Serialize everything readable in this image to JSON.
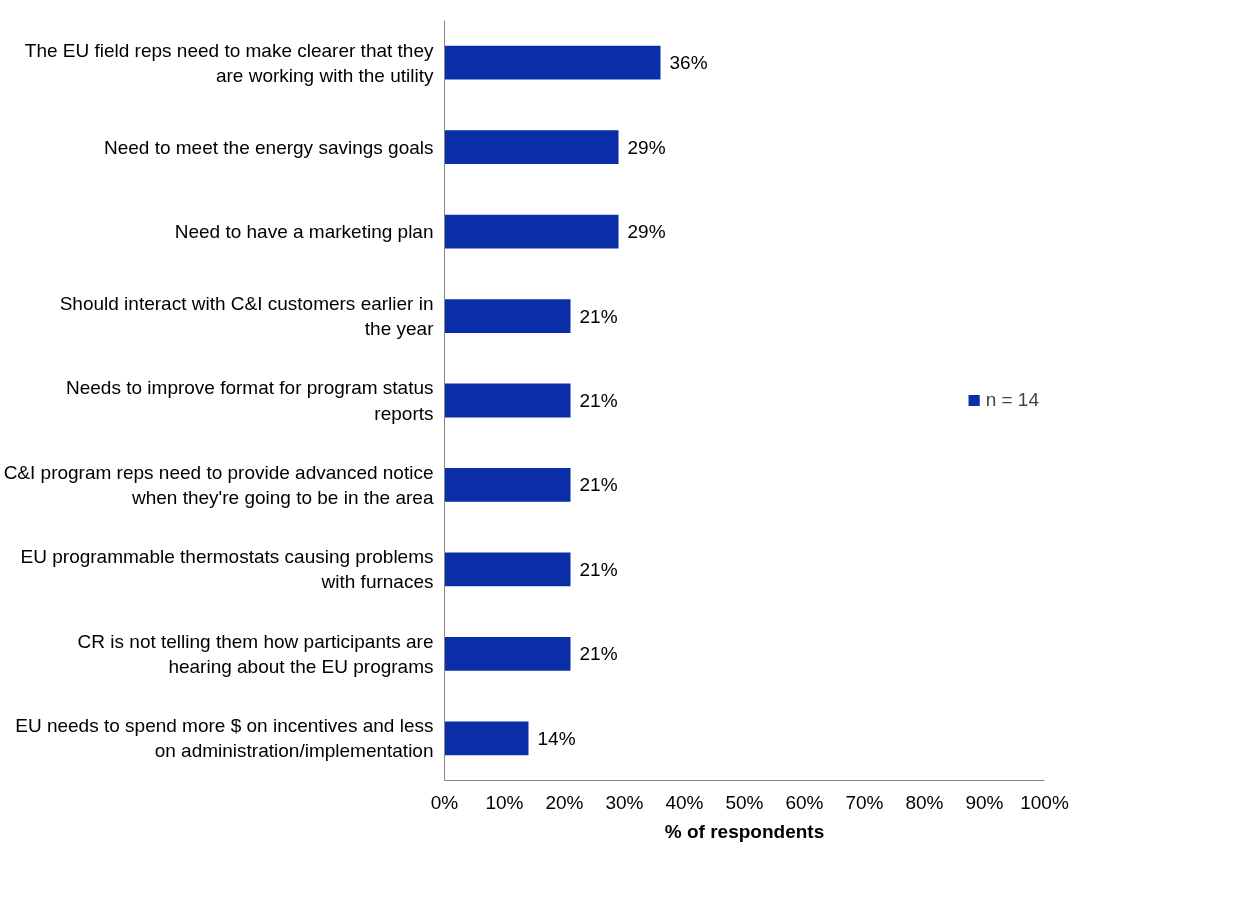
{
  "chart_data": {
    "type": "bar",
    "orientation": "horizontal",
    "xlabel": "% of respondents",
    "categories": [
      "The EU field reps need to make clearer that they are working with the utility",
      "Need to meet the energy savings goals",
      "Need to have a marketing plan",
      "Should interact with C&I customers earlier in the year",
      "Needs to improve format for program status reports",
      "C&I program reps need to provide advanced notice when they're going to be in the area",
      "EU programmable thermostats causing problems with furnaces",
      "CR is not telling them how participants are hearing about the EU programs",
      "EU needs to spend more $ on incentives and less on administration/implementation"
    ],
    "series": [
      {
        "name": "n = 14",
        "color": "#0a2da8",
        "values": [
          36,
          29,
          29,
          21,
          21,
          21,
          21,
          21,
          14
        ],
        "value_labels": [
          "36%",
          "29%",
          "29%",
          "21%",
          "21%",
          "21%",
          "21%",
          "21%",
          "14%"
        ]
      }
    ],
    "xlim": [
      0,
      100
    ],
    "xticks": [
      {
        "value": 0,
        "label": "0%"
      },
      {
        "value": 10,
        "label": "10%"
      },
      {
        "value": 20,
        "label": "20%"
      },
      {
        "value": 30,
        "label": "30%"
      },
      {
        "value": 40,
        "label": "40%"
      },
      {
        "value": 50,
        "label": "50%"
      },
      {
        "value": 60,
        "label": "60%"
      },
      {
        "value": 70,
        "label": "70%"
      },
      {
        "value": 80,
        "label": "80%"
      },
      {
        "value": 90,
        "label": "90%"
      },
      {
        "value": 100,
        "label": "100%"
      }
    ],
    "grid": false,
    "legend": "right"
  }
}
